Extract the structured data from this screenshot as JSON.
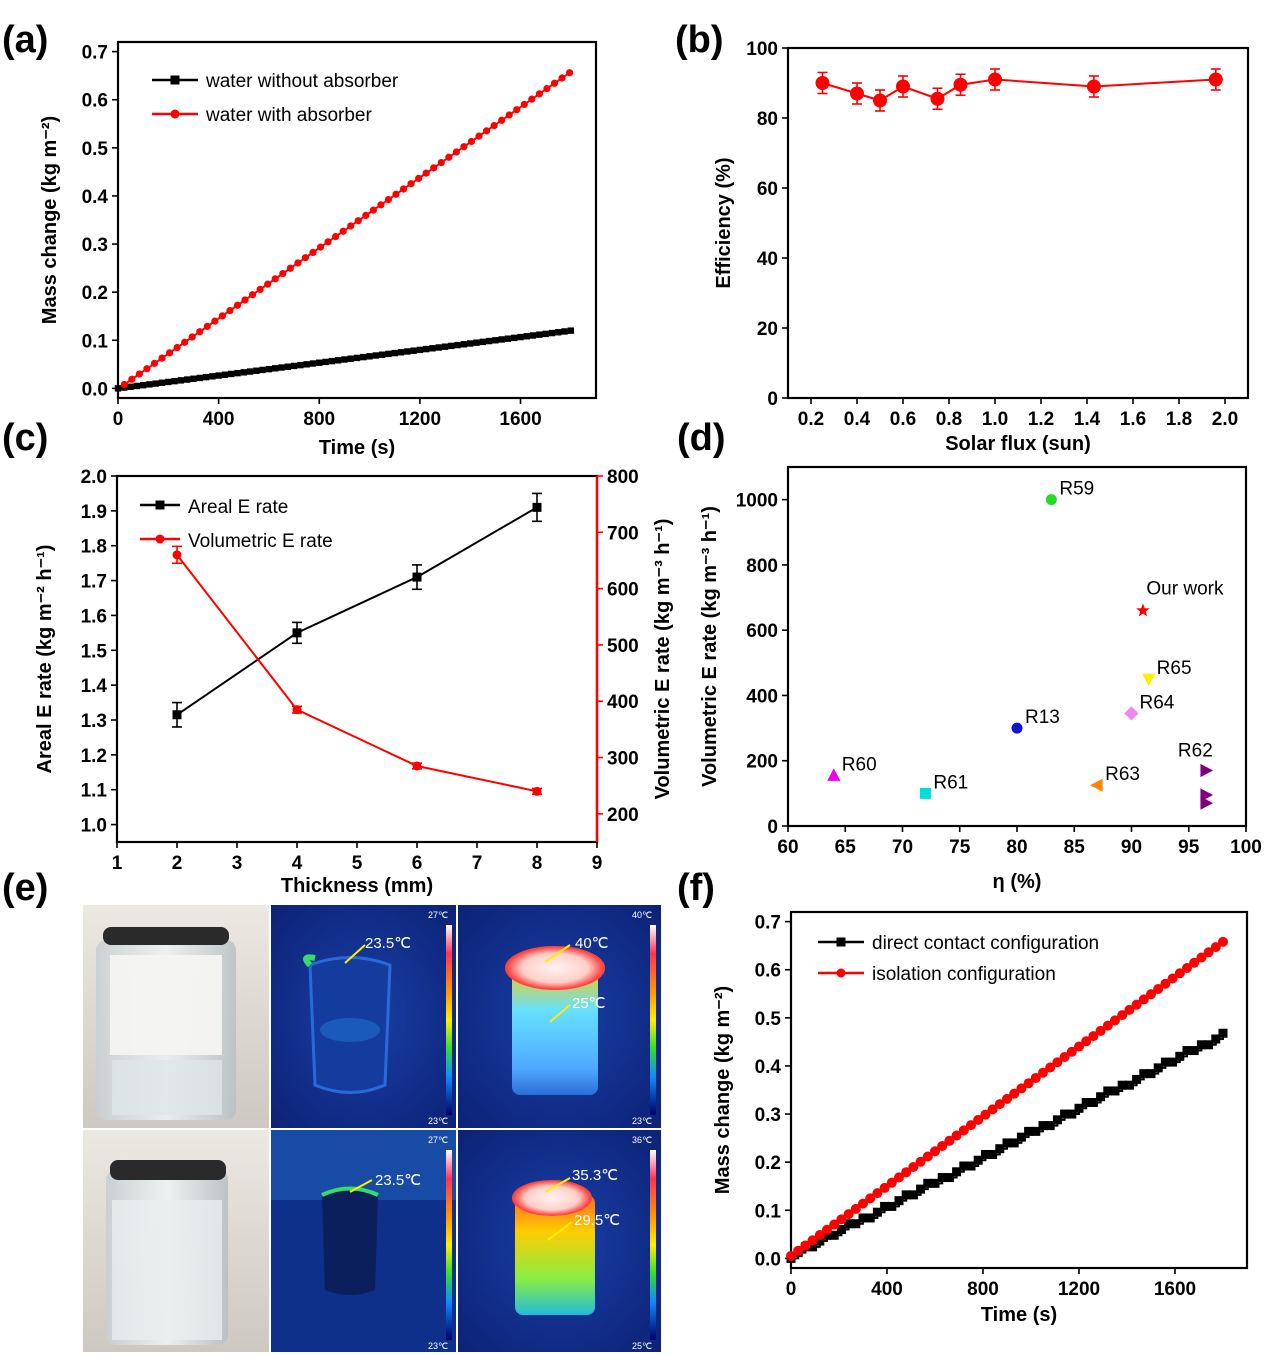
{
  "chart_data": [
    {
      "id": "a",
      "panel_label": "(a)",
      "type": "line",
      "xlabel": "Time (s)",
      "ylabel": "Mass change (kg m⁻²)",
      "xlim": [
        0,
        1900
      ],
      "ylim": [
        -0.02,
        0.72
      ],
      "xticks": [
        0,
        400,
        800,
        1200,
        1600
      ],
      "yticks": [
        0.0,
        0.1,
        0.2,
        0.3,
        0.4,
        0.5,
        0.6,
        0.7
      ],
      "ytick_labels": [
        "0.0",
        "0.1",
        "0.2",
        "0.3",
        "0.4",
        "0.5",
        "0.6",
        "0.7"
      ],
      "series": [
        {
          "name": "water without absorber",
          "color": "#000000",
          "marker": "square",
          "x_start": 0,
          "x_end": 1800,
          "x_step": 25,
          "y_start": 0.0,
          "y_end": 0.12
        },
        {
          "name": "water with absorber",
          "color": "#ff0000",
          "marker": "circle",
          "x_start": 25,
          "x_end": 1800,
          "x_step": 30,
          "y_start": 0.008,
          "y_end": 0.658
        }
      ]
    },
    {
      "id": "b",
      "panel_label": "(b)",
      "type": "line",
      "xlabel": "Solar flux (sun)",
      "ylabel": "Efficiency (%)",
      "xlim": [
        0.1,
        2.1
      ],
      "ylim": [
        0,
        100
      ],
      "xticks": [
        0.2,
        0.4,
        0.6,
        0.8,
        1.0,
        1.2,
        1.4,
        1.6,
        1.8,
        2.0
      ],
      "xtick_labels": [
        "0.2",
        "0.4",
        "0.6",
        "0.8",
        "1.0",
        "1.2",
        "1.4",
        "1.6",
        "1.8",
        "2.0"
      ],
      "yticks": [
        0,
        20,
        40,
        60,
        80,
        100
      ],
      "series": [
        {
          "color": "#ff0000",
          "x": [
            0.25,
            0.4,
            0.5,
            0.6,
            0.75,
            0.85,
            1.0,
            1.43,
            1.96
          ],
          "y": [
            90,
            87,
            85,
            89,
            85.5,
            89.5,
            91,
            89,
            91
          ],
          "err": 3
        }
      ]
    },
    {
      "id": "c",
      "panel_label": "(c)",
      "type": "line",
      "xlabel": "Thickness (mm)",
      "ylabel": "Areal E rate (kg m⁻² h⁻¹)",
      "ylabel_right": "Volumetric E rate (kg m⁻³ h⁻¹)",
      "xlim": [
        1,
        9
      ],
      "ylim": [
        0.95,
        2.0
      ],
      "ylim_right": [
        150,
        800
      ],
      "xticks": [
        1,
        2,
        3,
        4,
        5,
        6,
        7,
        8,
        9
      ],
      "yticks": [
        1.0,
        1.1,
        1.2,
        1.3,
        1.4,
        1.5,
        1.6,
        1.7,
        1.8,
        1.9,
        2.0
      ],
      "ytick_labels": [
        "1.0",
        "1.1",
        "1.2",
        "1.3",
        "1.4",
        "1.5",
        "1.6",
        "1.7",
        "1.8",
        "1.9",
        "2.0"
      ],
      "yticks_right": [
        200,
        300,
        400,
        500,
        600,
        700,
        800
      ],
      "series": [
        {
          "name": "Areal E rate",
          "color": "#000000",
          "axis": "left",
          "x": [
            2,
            4,
            6,
            8
          ],
          "y": [
            1.315,
            1.55,
            1.71,
            1.91
          ],
          "err": [
            0.035,
            0.03,
            0.035,
            0.04
          ]
        },
        {
          "name": "Volumetric E rate",
          "color": "#ff0000",
          "axis": "right",
          "x": [
            2,
            4,
            6,
            8
          ],
          "y": [
            660,
            385,
            285,
            240
          ],
          "err": [
            15,
            6,
            5,
            5
          ]
        }
      ]
    },
    {
      "id": "d",
      "panel_label": "(d)",
      "type": "scatter",
      "xlabel": "η (%)",
      "ylabel": "Volumetric E rate (kg m⁻³ h⁻¹)",
      "xlim": [
        60,
        100
      ],
      "ylim": [
        0,
        1100
      ],
      "xticks": [
        60,
        65,
        70,
        75,
        80,
        85,
        90,
        95,
        100
      ],
      "yticks": [
        0,
        200,
        400,
        600,
        800,
        1000
      ],
      "points": [
        {
          "label": "R59",
          "x": 83,
          "y": 1000,
          "color": "#22dd22",
          "marker": "circle"
        },
        {
          "label": "Our work",
          "x": 91,
          "y": 660,
          "color": "#ff0000",
          "marker": "star"
        },
        {
          "label": "R65",
          "x": 91.5,
          "y": 450,
          "color": "#ffee00",
          "marker": "triangle-down"
        },
        {
          "label": "R64",
          "x": 90,
          "y": 345,
          "color": "#ee88ee",
          "marker": "diamond"
        },
        {
          "label": "R13",
          "x": 80,
          "y": 300,
          "color": "#1111dd",
          "marker": "circle"
        },
        {
          "label": "R62",
          "x": 96.5,
          "y": 170,
          "color": "#800080",
          "marker": "triangle-right"
        },
        {
          "label": "",
          "x": 96.5,
          "y": 95,
          "color": "#800080",
          "marker": "triangle-right"
        },
        {
          "label": "",
          "x": 96.5,
          "y": 70,
          "color": "#800080",
          "marker": "triangle-right"
        },
        {
          "label": "R63",
          "x": 87,
          "y": 125,
          "color": "#ff8800",
          "marker": "triangle-left"
        },
        {
          "label": "R60",
          "x": 64,
          "y": 155,
          "color": "#ee00ee",
          "marker": "triangle-up"
        },
        {
          "label": "R61",
          "x": 72,
          "y": 100,
          "color": "#00dddd",
          "marker": "square"
        }
      ]
    },
    {
      "id": "f",
      "panel_label": "(f)",
      "type": "line",
      "xlabel": "Time (s)",
      "ylabel": "Mass change (kg m⁻²)",
      "xlim": [
        0,
        1900
      ],
      "ylim": [
        -0.02,
        0.72
      ],
      "xticks": [
        0,
        400,
        800,
        1200,
        1600
      ],
      "yticks": [
        0.0,
        0.1,
        0.2,
        0.3,
        0.4,
        0.5,
        0.6,
        0.7
      ],
      "ytick_labels": [
        "0.0",
        "0.1",
        "0.2",
        "0.3",
        "0.4",
        "0.5",
        "0.6",
        "0.7"
      ],
      "series": [
        {
          "name": "direct contact configuration",
          "color": "#000000",
          "marker": "square",
          "x_start": 0,
          "x_end": 1800,
          "x_step": 30,
          "y_start": 0.005,
          "y_end": 0.465
        },
        {
          "name": "isolation configuration",
          "color": "#ff0000",
          "marker": "circle",
          "x_start": 0,
          "x_end": 1800,
          "x_step": 30,
          "y_start": 0.005,
          "y_end": 0.658
        }
      ]
    }
  ],
  "panel_e": {
    "panel_label": "(e)",
    "top": {
      "thermal1": {
        "spot": "23.5℃",
        "scale_max": "27℃",
        "scale_min": "23℃"
      },
      "thermal2": {
        "spot1": "40℃",
        "spot2": "25℃",
        "scale_max": "40℃",
        "scale_min": "23℃"
      }
    },
    "bottom": {
      "thermal1": {
        "spot": "23.5℃",
        "scale_max": "27℃",
        "scale_min": "23℃"
      },
      "thermal2": {
        "spot1": "35.3℃",
        "spot2": "29.5℃",
        "scale_max": "36℃",
        "scale_min": "25℃"
      }
    }
  }
}
